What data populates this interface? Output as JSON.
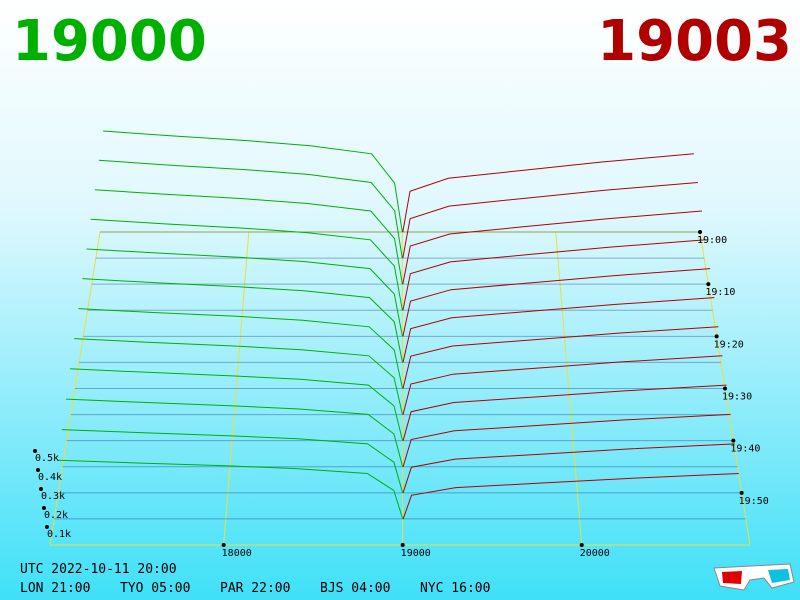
{
  "chart_data": {
    "type": "depth3d",
    "bid_title": "19000",
    "ask_title": "19003",
    "bid_color": "#00b000",
    "ask_color": "#b00000",
    "xlim": [
      17030,
      20940
    ],
    "xticks": [
      18000,
      19000,
      20000
    ],
    "tlim": [
      0,
      60
    ],
    "tticks": [
      {
        "value": 0,
        "label": "19:00"
      },
      {
        "value": 10,
        "label": "19:10"
      },
      {
        "value": 20,
        "label": "19:20"
      },
      {
        "value": 30,
        "label": "19:30"
      },
      {
        "value": 40,
        "label": "19:40"
      },
      {
        "value": 50,
        "label": "19:50"
      }
    ],
    "zticks": [
      {
        "value": 100,
        "label": "0.1k"
      },
      {
        "value": 200,
        "label": "0.2k"
      },
      {
        "value": 300,
        "label": "0.3k"
      },
      {
        "value": 400,
        "label": "0.4k"
      },
      {
        "value": 500,
        "label": "0.5k"
      }
    ],
    "t": [
      0,
      5,
      10,
      15,
      20,
      25,
      30,
      35,
      40,
      45,
      50,
      55
    ],
    "bid_prices": [
      17050,
      17500,
      18000,
      18400,
      18800,
      18950,
      19000
    ],
    "ask_prices": [
      19003,
      19050,
      19300,
      19800,
      20300,
      20900
    ],
    "bid_depth": [
      [
        620,
        590,
        560,
        530,
        480,
        300,
        0
      ],
      [
        592,
        563,
        535,
        506,
        458,
        287,
        0
      ],
      [
        564,
        537,
        510,
        482,
        437,
        273,
        0
      ],
      [
        536,
        510,
        484,
        458,
        415,
        260,
        0
      ],
      [
        508,
        484,
        459,
        435,
        394,
        246,
        0
      ],
      [
        481,
        457,
        434,
        411,
        372,
        233,
        0
      ],
      [
        453,
        431,
        409,
        387,
        350,
        219,
        0
      ],
      [
        425,
        404,
        384,
        363,
        329,
        206,
        0
      ],
      [
        397,
        378,
        358,
        339,
        307,
        192,
        0
      ],
      [
        369,
        351,
        333,
        315,
        286,
        179,
        0
      ],
      [
        341,
        325,
        308,
        292,
        264,
        165,
        0
      ],
      [
        313,
        298,
        283,
        268,
        242,
        152,
        0
      ]
    ],
    "ask_depth": [
      [
        0,
        250,
        330,
        380,
        430,
        480
      ],
      [
        0,
        239,
        315,
        363,
        411,
        458
      ],
      [
        0,
        228,
        300,
        346,
        391,
        437
      ],
      [
        0,
        216,
        285,
        329,
        372,
        415
      ],
      [
        0,
        205,
        271,
        312,
        353,
        394
      ],
      [
        0,
        194,
        256,
        295,
        333,
        372
      ],
      [
        0,
        183,
        241,
        277,
        314,
        350
      ],
      [
        0,
        171,
        226,
        260,
        295,
        329
      ],
      [
        0,
        160,
        211,
        243,
        275,
        307
      ],
      [
        0,
        149,
        196,
        226,
        256,
        286
      ],
      [
        0,
        138,
        182,
        209,
        237,
        264
      ],
      [
        0,
        126,
        167,
        192,
        217,
        242
      ]
    ],
    "utc": "UTC 2022-10-11 20:00",
    "clocks": [
      "LON 21:00",
      "TYO 05:00",
      "PAR 22:00",
      "BJS 04:00",
      "NYC 16:00"
    ]
  }
}
